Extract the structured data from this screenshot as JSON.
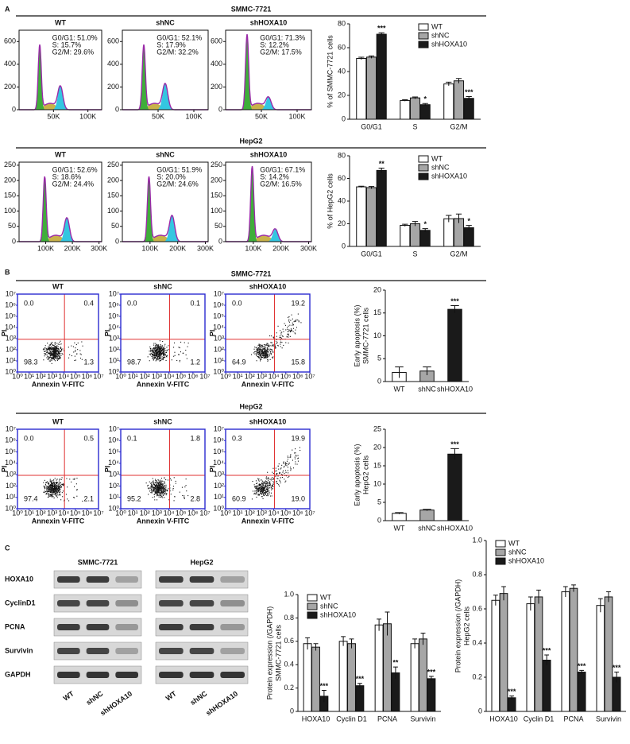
{
  "panel_a": {
    "label": "A",
    "rows": [
      {
        "title": "SMMC-7721",
        "ylim": [
          0,
          700
        ],
        "yticks": [
          0,
          200,
          400,
          600
        ],
        "xlim": [
          0,
          120000
        ],
        "xticks": [
          {
            "value": 50000,
            "label": "50K"
          },
          {
            "value": 100000,
            "label": "100K"
          }
        ],
        "plots": [
          {
            "title": "WT",
            "stats": [
              "G0/G1: 51.0%",
              "S: 15.7%",
              "G2/M: 29.6%"
            ]
          },
          {
            "title": "shNC",
            "stats": [
              "G0/G1: 52.1%",
              "S: 17.9%",
              "G2/M: 32.2%"
            ]
          },
          {
            "title": "shHOXA10",
            "stats": [
              "G0/G1: 71.3%",
              "S: 12.2%",
              "G2/M: 17.5%"
            ]
          }
        ]
      },
      {
        "title": "HepG2",
        "ylim": [
          0,
          260
        ],
        "yticks": [
          0,
          50,
          100,
          150,
          200,
          250
        ],
        "xlim": [
          0,
          310000
        ],
        "xticks": [
          {
            "value": 100000,
            "label": "100K"
          },
          {
            "value": 200000,
            "label": "200K"
          },
          {
            "value": 300000,
            "label": "300K"
          }
        ],
        "plots": [
          {
            "title": "WT",
            "stats": [
              "G0/G1: 52.6%",
              "S: 18.6%",
              "G2/M: 24.4%"
            ]
          },
          {
            "title": "shNC",
            "stats": [
              "G0/G1: 51.9%",
              "S: 20.0%",
              "G2/M: 24.6%"
            ]
          },
          {
            "title": "shHOXA10",
            "stats": [
              "G0/G1: 67.1%",
              "S: 14.2%",
              "G2/M: 16.5%"
            ]
          }
        ]
      }
    ]
  },
  "panel_b": {
    "label": "B",
    "x_label": "Annexin V-FITC",
    "y_label": "PI",
    "ticks": [
      {
        "value": 0,
        "label": "10⁰"
      },
      {
        "value": 1,
        "label": "10¹"
      },
      {
        "value": 2,
        "label": "10²"
      },
      {
        "value": 3,
        "label": "10³"
      },
      {
        "value": 4,
        "label": "10⁴"
      },
      {
        "value": 5,
        "label": "10⁵"
      },
      {
        "value": 6,
        "label": "10⁶"
      },
      {
        "value": 7,
        "label": "10⁷"
      }
    ],
    "rows": [
      {
        "title": "SMMC-7721",
        "plots": [
          {
            "title": "WT",
            "quadrants": [
              "0.0",
              "0.4",
              "98.3",
              "1.3"
            ]
          },
          {
            "title": "shNC",
            "quadrants": [
              "0.0",
              "0.1",
              "98.7",
              "1.2"
            ]
          },
          {
            "title": "shHOXA10",
            "quadrants": [
              "0.0",
              "19.2",
              "64.9",
              "15.8"
            ]
          }
        ]
      },
      {
        "title": "HepG2",
        "plots": [
          {
            "title": "WT",
            "quadrants": [
              "0.0",
              "0.5",
              "97.4",
              "2.1"
            ]
          },
          {
            "title": "shNC",
            "quadrants": [
              "0.1",
              "1.8",
              "95.2",
              "2.8"
            ]
          },
          {
            "title": "shHOXA10",
            "quadrants": [
              "0.3",
              "19.9",
              "60.9",
              "19.0"
            ]
          }
        ]
      }
    ]
  },
  "panel_c": {
    "label": "C",
    "proteins": [
      "HOXA10",
      "CyclinD1",
      "PCNA",
      "Survivin",
      "GAPDH"
    ],
    "groups": [
      "SMMC-7721",
      "HepG2"
    ],
    "lanes": [
      "WT",
      "shNC",
      "shHOXA10"
    ]
  },
  "chart_data": [
    {
      "type": "bar",
      "ylabel": [
        "% of SMMC-7721 cells"
      ],
      "categories": [
        "G0/G1",
        "S",
        "G2/M"
      ],
      "ylim": [
        0,
        80
      ],
      "yticks": [
        0,
        20,
        40,
        60,
        80
      ],
      "legend": "top-right",
      "series": [
        {
          "name": "WT",
          "color": "#ffffff",
          "values": [
            51.0,
            15.7,
            29.6
          ],
          "errors": [
            1.0,
            0.6,
            1.5
          ]
        },
        {
          "name": "shNC",
          "color": "#a6a6a6",
          "values": [
            52.1,
            17.9,
            32.2
          ],
          "errors": [
            1.0,
            0.8,
            2.0
          ]
        },
        {
          "name": "shHOXA10",
          "color": "#1a1a1a",
          "values": [
            71.3,
            12.2,
            17.5
          ],
          "errors": [
            1.2,
            1.0,
            1.5
          ],
          "annotations": [
            "***",
            "*",
            "***"
          ]
        }
      ]
    },
    {
      "type": "bar",
      "ylabel": [
        "% of HepG2 cells"
      ],
      "categories": [
        "G0/G1",
        "S",
        "G2/M"
      ],
      "ylim": [
        0,
        80
      ],
      "yticks": [
        0,
        20,
        40,
        60,
        80
      ],
      "legend": "top-right",
      "series": [
        {
          "name": "WT",
          "color": "#ffffff",
          "values": [
            52.6,
            18.6,
            24.4
          ],
          "errors": [
            0.6,
            1.0,
            3.0
          ]
        },
        {
          "name": "shNC",
          "color": "#a6a6a6",
          "values": [
            51.9,
            20.0,
            24.6
          ],
          "errors": [
            1.0,
            2.0,
            4.0
          ]
        },
        {
          "name": "shHOXA10",
          "color": "#1a1a1a",
          "values": [
            67.1,
            14.2,
            16.5
          ],
          "errors": [
            2.0,
            1.5,
            2.0
          ],
          "annotations": [
            "**",
            "*",
            "*"
          ]
        }
      ]
    },
    {
      "type": "bar",
      "ylabel": [
        "Early apoptosis (%)",
        "SMMC-7721 cells"
      ],
      "categories": [
        "WT",
        "shNC",
        "shHOXA10"
      ],
      "values": [
        2.0,
        2.3,
        15.8
      ],
      "errors": [
        1.2,
        0.9,
        0.8
      ],
      "annotations": [
        null,
        null,
        "***"
      ],
      "colors": [
        "#ffffff",
        "#a6a6a6",
        "#1a1a1a"
      ],
      "ylim": [
        0,
        20
      ],
      "yticks": [
        0,
        5,
        10,
        15,
        20
      ]
    },
    {
      "type": "bar",
      "ylabel": [
        "Early apoptosis (%)",
        "HepG2 cells"
      ],
      "categories": [
        "WT",
        "shNC",
        "shHOXA10"
      ],
      "values": [
        2.0,
        2.9,
        18.2
      ],
      "errors": [
        0.2,
        0.2,
        1.5
      ],
      "annotations": [
        null,
        null,
        "***"
      ],
      "colors": [
        "#ffffff",
        "#a6a6a6",
        "#1a1a1a"
      ],
      "ylim": [
        0,
        25
      ],
      "yticks": [
        0,
        5,
        10,
        15,
        20,
        25
      ]
    },
    {
      "type": "bar",
      "ylabel": [
        "Protein expression (/GAPDH)",
        "SMMC-7721 cells"
      ],
      "categories": [
        "HOXA10",
        "Cyclin D1",
        "PCNA",
        "Survivin"
      ],
      "ylim": [
        0,
        1
      ],
      "yticks": [
        0,
        0.2,
        0.4,
        0.6,
        0.8,
        {
          "value": 1,
          "label": "1.0"
        }
      ],
      "legend": "top-left",
      "series": [
        {
          "name": "WT",
          "color": "#ffffff",
          "values": [
            0.58,
            0.6,
            0.74,
            0.58
          ],
          "errors": [
            0.05,
            0.04,
            0.05,
            0.04
          ]
        },
        {
          "name": "shNC",
          "color": "#a6a6a6",
          "values": [
            0.55,
            0.58,
            0.75,
            0.62
          ],
          "errors": [
            0.03,
            0.04,
            0.1,
            0.05
          ]
        },
        {
          "name": "shHOXA10",
          "color": "#1a1a1a",
          "values": [
            0.13,
            0.22,
            0.33,
            0.28
          ],
          "errors": [
            0.05,
            0.02,
            0.05,
            0.02
          ],
          "annotations": [
            "***",
            "***",
            "**",
            "***"
          ]
        }
      ]
    },
    {
      "type": "bar",
      "ylabel": [
        "Protein expression (/GAPDH)",
        "HepG2 cells"
      ],
      "categories": [
        "HOXA10",
        "Cyclin D1",
        "PCNA",
        "Survivin"
      ],
      "ylim": [
        0,
        1
      ],
      "yticks": [
        0,
        0.2,
        0.4,
        0.6,
        0.8,
        {
          "value": 1,
          "label": "1.0"
        }
      ],
      "legend": "top-left",
      "series": [
        {
          "name": "WT",
          "color": "#ffffff",
          "values": [
            0.65,
            0.63,
            0.7,
            0.62
          ],
          "errors": [
            0.03,
            0.04,
            0.03,
            0.04
          ]
        },
        {
          "name": "shNC",
          "color": "#a6a6a6",
          "values": [
            0.69,
            0.67,
            0.72,
            0.67
          ],
          "errors": [
            0.04,
            0.04,
            0.02,
            0.03
          ]
        },
        {
          "name": "shHOXA10",
          "color": "#1a1a1a",
          "values": [
            0.08,
            0.3,
            0.23,
            0.2
          ],
          "errors": [
            0.01,
            0.03,
            0.01,
            0.03
          ],
          "annotations": [
            "***",
            "***",
            "***",
            "***"
          ]
        }
      ]
    }
  ]
}
